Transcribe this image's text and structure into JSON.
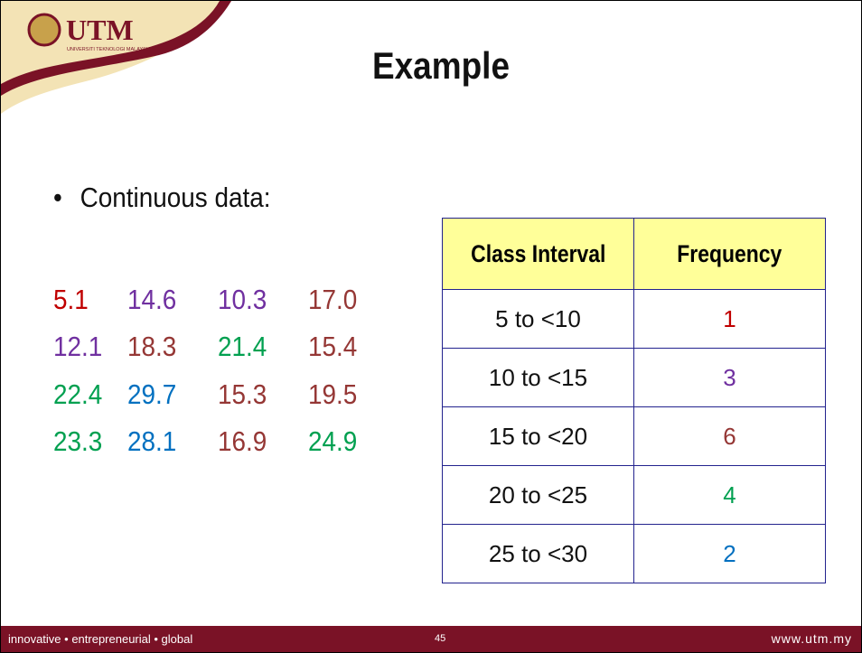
{
  "header": {
    "logo": "UTM",
    "logo_subtitle": "UNIVERSITI TEKNOLOGI MALAYSIA",
    "title": "Example"
  },
  "bullet": "Continuous data:",
  "data_grid": [
    [
      {
        "text": "5.1",
        "color": "#c00000"
      },
      {
        "text": "14.6",
        "color": "#7030a0"
      },
      {
        "text": "10.3",
        "color": "#7030a0"
      },
      {
        "text": "17.0",
        "color": "#953735"
      }
    ],
    [
      {
        "text": "12.1",
        "color": "#7030a0"
      },
      {
        "text": "18.3",
        "color": "#953735"
      },
      {
        "text": "21.4",
        "color": "#00a050"
      },
      {
        "text": "15.4",
        "color": "#953735"
      }
    ],
    [
      {
        "text": "22.4",
        "color": "#00a050"
      },
      {
        "text": "29.7",
        "color": "#0070c0"
      },
      {
        "text": "15.3",
        "color": "#953735"
      },
      {
        "text": "19.5",
        "color": "#953735"
      }
    ],
    [
      {
        "text": "23.3",
        "color": "#00a050"
      },
      {
        "text": "28.1",
        "color": "#0070c0"
      },
      {
        "text": "16.9",
        "color": "#953735"
      },
      {
        "text": "24.9",
        "color": "#00a050"
      }
    ]
  ],
  "table": {
    "headers": [
      "Class Interval",
      "Frequency"
    ],
    "rows": [
      {
        "interval": "5 to <10",
        "frequency": "1",
        "color": "#c00000"
      },
      {
        "interval": "10 to <15",
        "frequency": "3",
        "color": "#7030a0"
      },
      {
        "interval": "15 to <20",
        "frequency": "6",
        "color": "#953735"
      },
      {
        "interval": "20 to <25",
        "frequency": "4",
        "color": "#00a050"
      },
      {
        "interval": "25 to <30",
        "frequency": "2",
        "color": "#0070c0"
      }
    ]
  },
  "footer": {
    "tagline": "innovative • entrepreneurial • global",
    "page": "45",
    "url": "www.utm.my"
  }
}
